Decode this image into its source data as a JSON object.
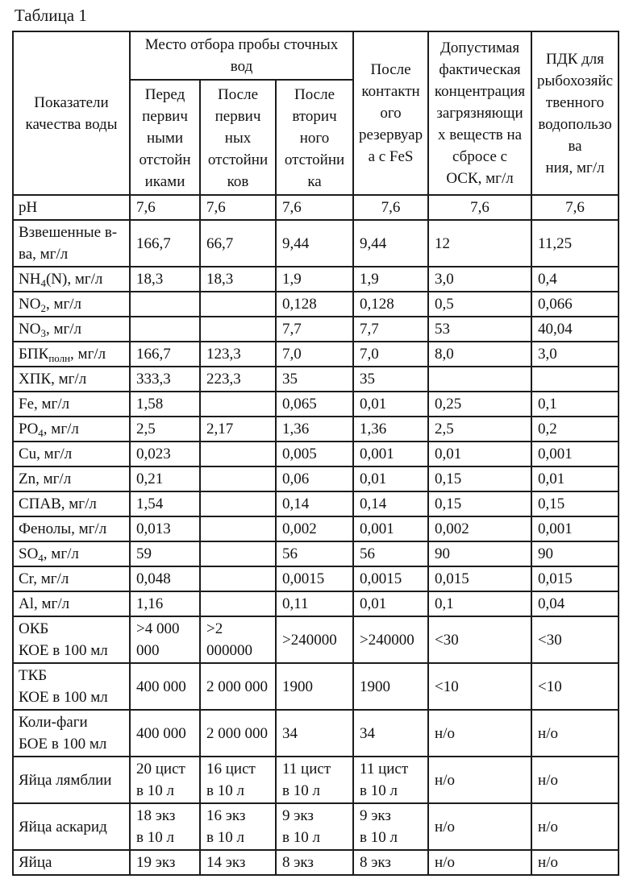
{
  "title": "Таблица 1",
  "table": {
    "header": {
      "indicator": "Показатели качества воды",
      "sampling_place": "Место отбора пробы сточных вод",
      "before_primary": "Перед\nпервич\nными\nотстойн\nиками",
      "after_primary": "После\nпервич\nных\nотстойни\nков",
      "after_secondary": "После\nвторич\nного\nотстойни\nка",
      "after_contact": "После\nконтактн\nого\nрезервуар\nа с FeS",
      "allowed_concentration": "Допустимая\nфактическая\nконцентрация\nзагрязняющи\nх веществ на\nсбросе с\nОСК, мг/л",
      "pdk": "ПДК для\nрыбохозяйс\nтвенного\nводопользо\nва\nния, мг/л"
    },
    "rows": [
      {
        "label": {
          "pre": "pH",
          "sub": "",
          "post": ""
        },
        "values": [
          "7,6",
          "7,6",
          "7,6",
          "7,6",
          "7,6",
          "7,6"
        ]
      },
      {
        "label": {
          "pre": "Взвешенные в-\nва, мг/л",
          "sub": "",
          "post": ""
        },
        "values": [
          "166,7",
          "66,7",
          "9,44",
          "9,44",
          "12",
          "11,25"
        ]
      },
      {
        "label": {
          "pre": "NH",
          "sub": "4",
          "post": "(N), мг/л"
        },
        "values": [
          "18,3",
          "18,3",
          "1,9",
          "1,9",
          "3,0",
          "0,4"
        ]
      },
      {
        "label": {
          "pre": "NO",
          "sub": "2",
          "post": ", мг/л"
        },
        "values": [
          "",
          "",
          "0,128",
          "0,128",
          "0,5",
          "0,066"
        ]
      },
      {
        "label": {
          "pre": "NO",
          "sub": "3",
          "post": ", мг/л"
        },
        "values": [
          "",
          "",
          "7,7",
          "7,7",
          "53",
          "40,04"
        ]
      },
      {
        "label": {
          "pre": "БПК",
          "sub": "полн",
          "post": ", мг/л"
        },
        "values": [
          "166,7",
          "123,3",
          "7,0",
          "7,0",
          "8,0",
          "3,0"
        ]
      },
      {
        "label": {
          "pre": "ХПК, мг/л",
          "sub": "",
          "post": ""
        },
        "values": [
          "333,3",
          "223,3",
          "35",
          "35",
          "",
          ""
        ]
      },
      {
        "label": {
          "pre": "Fe, мг/л",
          "sub": "",
          "post": ""
        },
        "values": [
          "1,58",
          "",
          "0,065",
          "0,01",
          "0,25",
          "0,1"
        ]
      },
      {
        "label": {
          "pre": "PO",
          "sub": "4",
          "post": ", мг/л"
        },
        "values": [
          "2,5",
          "2,17",
          "1,36",
          "1,36",
          "2,5",
          "0,2"
        ]
      },
      {
        "label": {
          "pre": "Cu, мг/л",
          "sub": "",
          "post": ""
        },
        "values": [
          "0,023",
          "",
          "0,005",
          "0,001",
          "0,01",
          "0,001"
        ]
      },
      {
        "label": {
          "pre": "Zn, мг/л",
          "sub": "",
          "post": ""
        },
        "values": [
          "0,21",
          "",
          "0,06",
          "0,01",
          "0,15",
          "0,01"
        ]
      },
      {
        "label": {
          "pre": "СПАВ, мг/л",
          "sub": "",
          "post": ""
        },
        "values": [
          "1,54",
          "",
          "0,14",
          "0,14",
          "0,15",
          "0,15"
        ]
      },
      {
        "label": {
          "pre": "Фенолы, мг/л",
          "sub": "",
          "post": ""
        },
        "values": [
          "0,013",
          "",
          "0,002",
          "0,001",
          "0,002",
          "0,001"
        ]
      },
      {
        "label": {
          "pre": "SO",
          "sub": "4",
          "post": ", мг/л"
        },
        "values": [
          "59",
          "",
          "56",
          "56",
          "90",
          "90"
        ]
      },
      {
        "label": {
          "pre": "Cr, мг/л",
          "sub": "",
          "post": ""
        },
        "values": [
          "0,048",
          "",
          "0,0015",
          "0,0015",
          "0,015",
          "0,015"
        ]
      },
      {
        "label": {
          "pre": "Al, мг/л",
          "sub": "",
          "post": ""
        },
        "values": [
          "1,16",
          "",
          "0,11",
          "0,01",
          "0,1",
          "0,04"
        ]
      },
      {
        "label": {
          "pre": "ОКБ\nКОЕ в 100 мл",
          "sub": "",
          "post": ""
        },
        "values": [
          ">4 000\n000",
          ">2\n000000",
          ">240000",
          ">240000",
          "<30",
          "<30"
        ]
      },
      {
        "label": {
          "pre": "ТКБ\nКОЕ в 100 мл",
          "sub": "",
          "post": ""
        },
        "values": [
          "400 000",
          "2 000 000",
          "1900",
          "1900",
          "<10",
          "<10"
        ]
      },
      {
        "label": {
          "pre": "Коли-фаги\nБОЕ в 100 мл",
          "sub": "",
          "post": ""
        },
        "values": [
          "400 000",
          "2 000 000",
          "34",
          "34",
          "н/о",
          "н/о"
        ]
      },
      {
        "label": {
          "pre": "Яйца лямблии",
          "sub": "",
          "post": ""
        },
        "values": [
          "20 цист\nв 10 л",
          "16 цист\nв 10 л",
          "11 цист\nв 10 л",
          "11 цист\nв 10 л",
          "н/о",
          "н/о"
        ]
      },
      {
        "label": {
          "pre": "Яйца аскарид",
          "sub": "",
          "post": ""
        },
        "values": [
          "18 экз\nв 10 л",
          "16 экз\nв 10 л",
          "9 экз\nв 10 л",
          "9 экз\nв 10 л",
          "н/о",
          "н/о"
        ]
      },
      {
        "label": {
          "pre": "Яйца",
          "sub": "",
          "post": ""
        },
        "values": [
          "19 экз",
          "14 экз",
          "8 экз",
          "8 экз",
          "н/о",
          "н/о"
        ]
      }
    ]
  }
}
